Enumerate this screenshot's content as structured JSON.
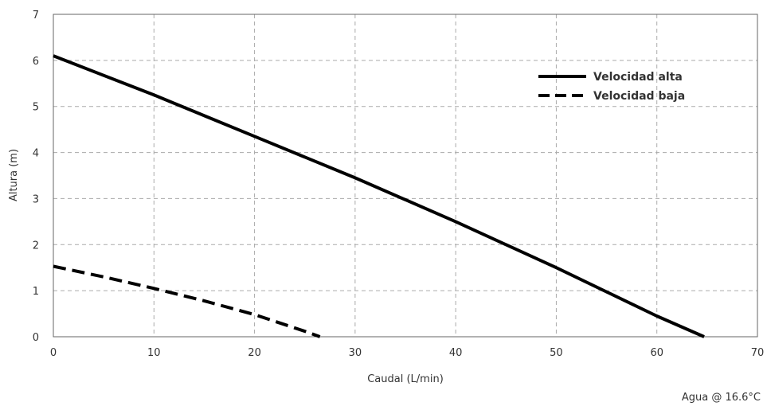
{
  "chart_data": {
    "type": "line",
    "xlabel": "Caudal (L/min)",
    "ylabel": "Altura (m)",
    "xlim": [
      0,
      70
    ],
    "ylim": [
      0,
      7
    ],
    "xticks": [
      0,
      10,
      20,
      30,
      40,
      50,
      60,
      70
    ],
    "yticks": [
      0,
      1,
      2,
      3,
      4,
      5,
      6,
      7
    ],
    "grid": true,
    "legend_position": "top-right",
    "series": [
      {
        "name": "Velocidad alta",
        "style": "solid",
        "color": "#000000",
        "x": [
          0,
          10,
          20,
          30,
          40,
          50,
          60,
          64.7
        ],
        "y": [
          6.1,
          5.25,
          4.35,
          3.45,
          2.5,
          1.5,
          0.45,
          0
        ]
      },
      {
        "name": "Velocidad baja",
        "style": "dashed",
        "color": "#000000",
        "x": [
          0,
          5,
          10,
          15,
          20,
          25,
          26.5
        ],
        "y": [
          1.53,
          1.3,
          1.05,
          0.78,
          0.48,
          0.12,
          0
        ]
      }
    ],
    "annotation": "Agua @ 16.6°C"
  }
}
